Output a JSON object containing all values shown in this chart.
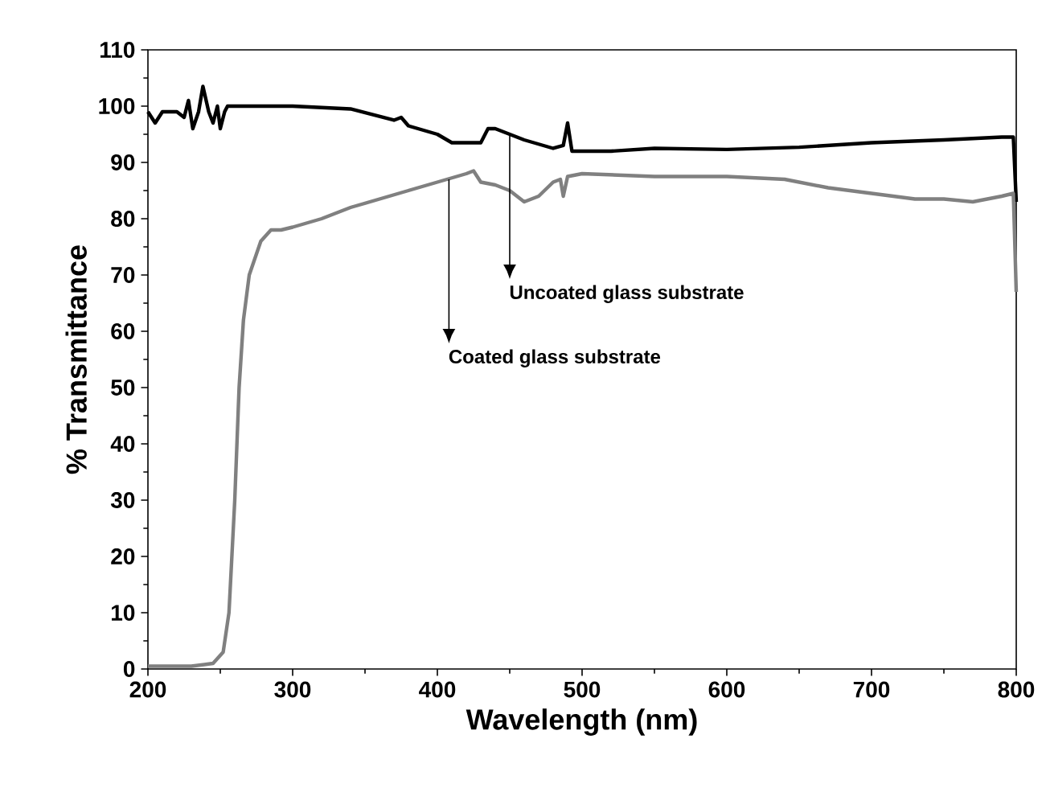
{
  "chart_data": {
    "type": "line",
    "xlabel": "Wavelength (nm)",
    "ylabel": "% Transmittance",
    "xlim": [
      200,
      800
    ],
    "ylim": [
      0,
      110
    ],
    "xticks": [
      200,
      300,
      400,
      500,
      600,
      700,
      800
    ],
    "yticks": [
      0,
      10,
      20,
      30,
      40,
      50,
      60,
      70,
      80,
      90,
      100,
      110
    ],
    "grid": false,
    "marker": "none",
    "line_style": "solid",
    "series": [
      {
        "color": "#000000",
        "x": [
          200,
          205,
          210,
          220,
          225,
          228,
          231,
          235,
          238,
          242,
          245,
          248,
          250,
          253,
          255,
          300,
          340,
          370,
          375,
          380,
          400,
          410,
          430,
          435,
          440,
          460,
          480,
          487,
          490,
          493,
          520,
          550,
          600,
          650,
          700,
          750,
          790,
          798,
          800
        ],
        "values": [
          99,
          97,
          99,
          99,
          98,
          101,
          96,
          99,
          103.5,
          99,
          97,
          100,
          96,
          99,
          100,
          100,
          99.5,
          97.5,
          98,
          96.5,
          95,
          93.5,
          93.5,
          96,
          96,
          94,
          92.5,
          93,
          97,
          92,
          92,
          92.5,
          92.3,
          92.7,
          93.5,
          94,
          94.5,
          94.5,
          83
        ]
      },
      {
        "color": "#808080",
        "x": [
          200,
          230,
          245,
          252,
          256,
          260,
          263,
          266,
          270,
          278,
          285,
          292,
          300,
          320,
          340,
          360,
          380,
          400,
          420,
          425,
          430,
          440,
          450,
          460,
          470,
          480,
          485,
          487,
          490,
          500,
          550,
          600,
          640,
          670,
          700,
          730,
          750,
          770,
          790,
          798,
          800
        ],
        "values": [
          0.5,
          0.5,
          1,
          3,
          10,
          30,
          50,
          62,
          70,
          76,
          78,
          78,
          78.5,
          80,
          82,
          83.5,
          85,
          86.5,
          88,
          88.5,
          86.5,
          86,
          85,
          83,
          84,
          86.5,
          87,
          84,
          87.5,
          88,
          87.5,
          87.5,
          87,
          85.5,
          84.5,
          83.5,
          83.5,
          83,
          84,
          84.5,
          67
        ]
      }
    ],
    "annotations": [
      {
        "text": "Uncoated glass substrate",
        "x": 450,
        "y": 95
      },
      {
        "text": "Coated glass substrate",
        "x": 408,
        "y": 87
      }
    ]
  }
}
